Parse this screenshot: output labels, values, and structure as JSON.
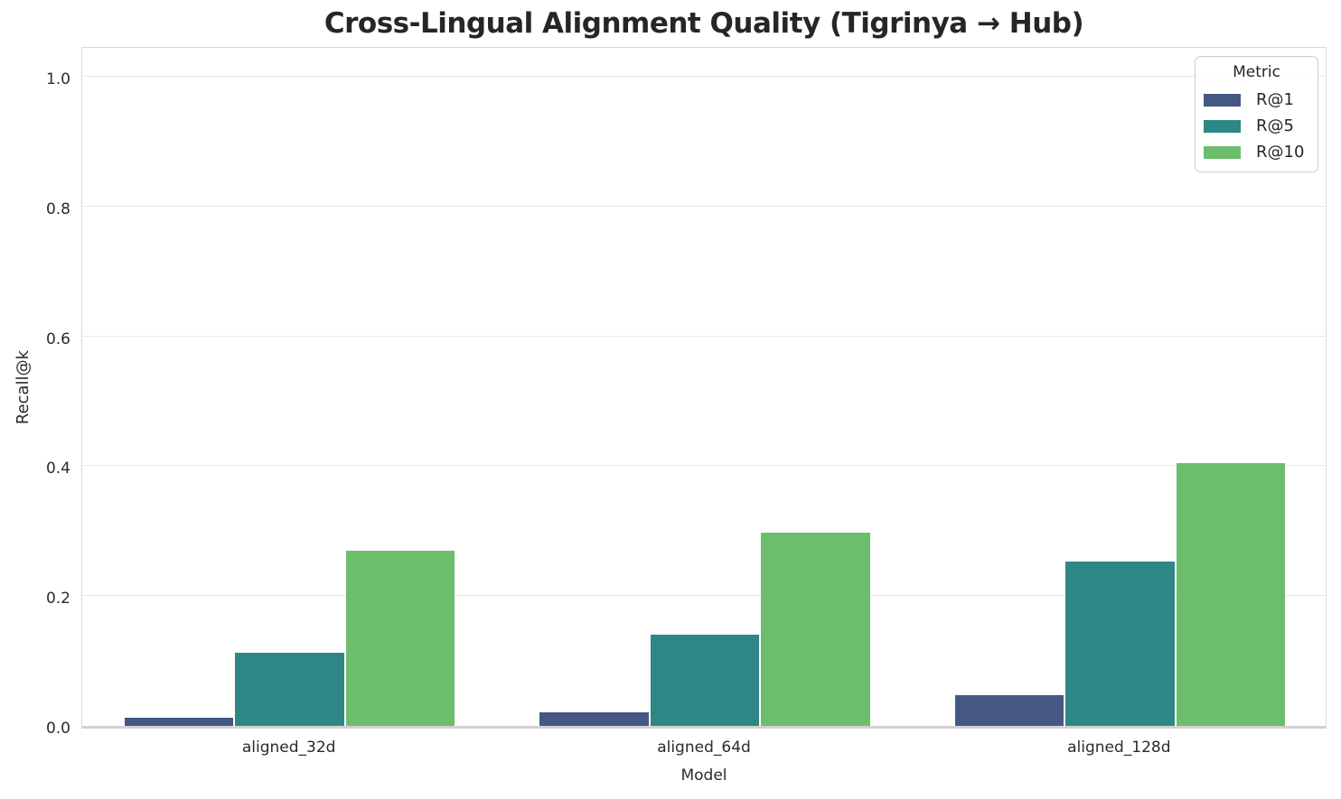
{
  "title": "Cross-Lingual Alignment Quality (Tigrinya → Hub)",
  "chart_data": {
    "type": "bar",
    "title": "Cross-Lingual Alignment Quality (Tigrinya → Hub)",
    "categories": [
      "aligned_32d",
      "aligned_64d",
      "aligned_128d"
    ],
    "series": [
      {
        "name": "R@1",
        "color": "#455783",
        "values": [
          0.012,
          0.021,
          0.048
        ]
      },
      {
        "name": "R@5",
        "color": "#2E8784",
        "values": [
          0.113,
          0.14,
          0.253
        ]
      },
      {
        "name": "R@10",
        "color": "#6CBE6D",
        "values": [
          0.27,
          0.297,
          0.405
        ]
      }
    ],
    "xlabel": "Model",
    "ylabel": "Recall@k",
    "ylim": [
      0,
      1.05
    ],
    "yticks": [
      "0.0",
      "0.2",
      "0.4",
      "0.6",
      "0.8",
      "1.0"
    ],
    "grid": true,
    "legend_title": "Metric",
    "legend_position": "upper right"
  },
  "colors": {
    "background": "#ffffff",
    "gridline": "#e9e9e9",
    "spine": "#d9d9d9",
    "bottom_spine": "#d2d2d2",
    "text": "#262626"
  }
}
